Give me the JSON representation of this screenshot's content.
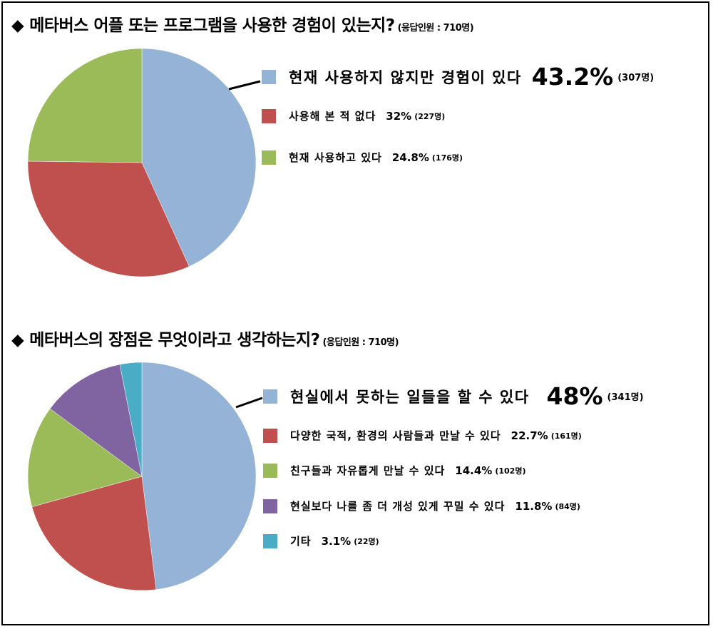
{
  "chart_data": [
    {
      "type": "pie",
      "title": "메타버스 어플 또는 프로그램을 사용한 경험이 있는지?",
      "note": "(응답인원 : 710명)",
      "slices": [
        {
          "label": "현재 사용하지 않지만 경험이 있다",
          "percent": 43.2,
          "percent_label": "43.2%",
          "count_label": "(307명)",
          "count": 307,
          "color": "#95B3D7"
        },
        {
          "label": "사용해 본 적 없다",
          "percent": 32,
          "percent_label": "32%",
          "count_label": "(227명)",
          "count": 227,
          "color": "#C0504D"
        },
        {
          "label": "현재 사용하고 있다",
          "percent": 24.8,
          "percent_label": "24.8%",
          "count_label": "(176명)",
          "count": 176,
          "color": "#9BBB59"
        }
      ],
      "legend_position": "right"
    },
    {
      "type": "pie",
      "title": "메타버스의 장점은 무엇이라고 생각하는지?",
      "note": "(응답인원 : 710명)",
      "slices": [
        {
          "label": "현실에서 못하는 일들을 할 수 있다",
          "percent": 48,
          "percent_label": "48%",
          "count_label": "(341명)",
          "count": 341,
          "color": "#95B3D7"
        },
        {
          "label": "다양한 국적, 환경의 사람들과 만날 수 있다",
          "percent": 22.7,
          "percent_label": "22.7%",
          "count_label": "(161명)",
          "count": 161,
          "color": "#C0504D"
        },
        {
          "label": "친구들과 자유롭게 만날 수 있다",
          "percent": 14.4,
          "percent_label": "14.4%",
          "count_label": "(102명)",
          "count": 102,
          "color": "#9BBB59"
        },
        {
          "label": "현실보다 나를 좀 더 개성 있게 꾸밀 수 있다",
          "percent": 11.8,
          "percent_label": "11.8%",
          "count_label": "(84명)",
          "count": 84,
          "color": "#8064A2"
        },
        {
          "label": "기타",
          "percent": 3.1,
          "percent_label": "3.1%",
          "count_label": "(22명)",
          "count": 22,
          "color": "#4BACC6"
        }
      ],
      "legend_position": "right"
    }
  ],
  "symbols": {
    "heading_marker": "◆"
  }
}
